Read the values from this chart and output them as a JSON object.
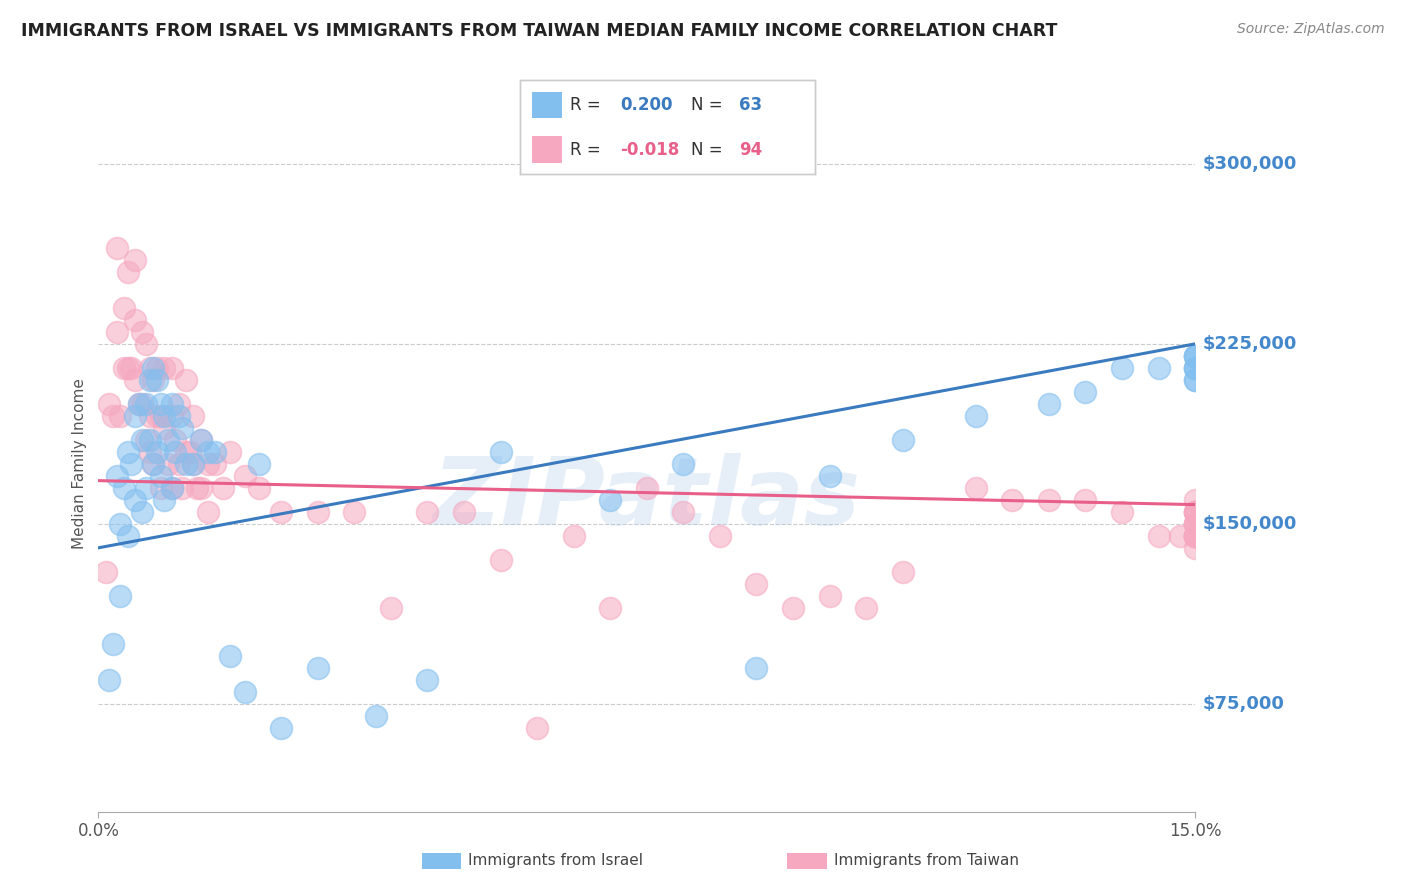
{
  "title": "IMMIGRANTS FROM ISRAEL VS IMMIGRANTS FROM TAIWAN MEDIAN FAMILY INCOME CORRELATION CHART",
  "source": "Source: ZipAtlas.com",
  "ylabel": "Median Family Income",
  "ytick_vals": [
    75000,
    150000,
    225000,
    300000
  ],
  "ytick_labels": [
    "$75,000",
    "$150,000",
    "$225,000",
    "$300,000"
  ],
  "xlim": [
    0.0,
    15.0
  ],
  "ylim": [
    30000,
    320000
  ],
  "israel_R": 0.2,
  "israel_N": 63,
  "taiwan_R": -0.018,
  "taiwan_N": 94,
  "israel_color": "#82bfef",
  "taiwan_color": "#f5a8c0",
  "israel_line_color": "#3a7abf",
  "taiwan_line_color": "#e8608a",
  "grid_color": "#cccccc",
  "watermark": "ZIPatlas",
  "watermark_color": "#a8c8e8",
  "title_color": "#222222",
  "axis_label_color": "#4488cc",
  "legend_border": "#cccccc",
  "israel_x": [
    0.15,
    0.2,
    0.25,
    0.3,
    0.3,
    0.35,
    0.4,
    0.4,
    0.45,
    0.5,
    0.5,
    0.55,
    0.6,
    0.6,
    0.65,
    0.65,
    0.7,
    0.7,
    0.75,
    0.75,
    0.8,
    0.8,
    0.85,
    0.85,
    0.9,
    0.9,
    0.95,
    1.0,
    1.0,
    1.05,
    1.1,
    1.15,
    1.2,
    1.3,
    1.4,
    1.5,
    1.6,
    1.8,
    2.0,
    2.2,
    2.5,
    3.0,
    3.8,
    4.5,
    5.5,
    7.0,
    8.0,
    9.0,
    10.0,
    11.0,
    12.0,
    13.0,
    13.5,
    14.0,
    14.5,
    15.0,
    15.0,
    15.0,
    15.0,
    15.0,
    15.0,
    15.0,
    15.0
  ],
  "israel_y": [
    85000,
    100000,
    170000,
    150000,
    120000,
    165000,
    180000,
    145000,
    175000,
    195000,
    160000,
    200000,
    185000,
    155000,
    200000,
    165000,
    210000,
    185000,
    215000,
    175000,
    210000,
    180000,
    200000,
    170000,
    195000,
    160000,
    185000,
    200000,
    165000,
    180000,
    195000,
    190000,
    175000,
    175000,
    185000,
    180000,
    180000,
    95000,
    80000,
    175000,
    65000,
    90000,
    70000,
    85000,
    180000,
    160000,
    175000,
    90000,
    170000,
    185000,
    195000,
    200000,
    205000,
    215000,
    215000,
    210000,
    215000,
    220000,
    215000,
    215000,
    220000,
    210000,
    220000
  ],
  "taiwan_x": [
    0.1,
    0.15,
    0.2,
    0.25,
    0.25,
    0.3,
    0.35,
    0.35,
    0.4,
    0.4,
    0.45,
    0.5,
    0.5,
    0.5,
    0.55,
    0.6,
    0.6,
    0.65,
    0.65,
    0.7,
    0.7,
    0.7,
    0.75,
    0.75,
    0.8,
    0.8,
    0.85,
    0.85,
    0.9,
    0.9,
    0.95,
    1.0,
    1.0,
    1.0,
    1.05,
    1.1,
    1.1,
    1.15,
    1.2,
    1.2,
    1.25,
    1.3,
    1.3,
    1.35,
    1.4,
    1.4,
    1.5,
    1.5,
    1.6,
    1.7,
    1.8,
    2.0,
    2.2,
    2.5,
    3.0,
    3.5,
    4.0,
    4.5,
    5.0,
    5.5,
    6.0,
    6.5,
    7.0,
    7.5,
    8.0,
    8.5,
    9.0,
    9.5,
    10.0,
    10.5,
    11.0,
    12.0,
    12.5,
    13.0,
    13.5,
    14.0,
    14.5,
    14.8,
    15.0,
    15.0,
    15.0,
    15.0,
    15.0,
    15.0,
    15.0,
    15.0,
    15.0,
    15.0,
    15.0,
    15.0,
    15.0,
    15.0,
    15.0,
    15.0
  ],
  "taiwan_y": [
    130000,
    200000,
    195000,
    230000,
    265000,
    195000,
    240000,
    215000,
    255000,
    215000,
    215000,
    260000,
    235000,
    210000,
    200000,
    230000,
    200000,
    225000,
    185000,
    215000,
    195000,
    180000,
    210000,
    175000,
    215000,
    195000,
    195000,
    165000,
    215000,
    190000,
    175000,
    215000,
    195000,
    165000,
    185000,
    200000,
    175000,
    165000,
    210000,
    180000,
    180000,
    195000,
    175000,
    165000,
    185000,
    165000,
    175000,
    155000,
    175000,
    165000,
    180000,
    170000,
    165000,
    155000,
    155000,
    155000,
    115000,
    155000,
    155000,
    135000,
    65000,
    145000,
    115000,
    165000,
    155000,
    145000,
    125000,
    115000,
    120000,
    115000,
    130000,
    165000,
    160000,
    160000,
    160000,
    155000,
    145000,
    145000,
    155000,
    150000,
    155000,
    160000,
    155000,
    145000,
    145000,
    145000,
    150000,
    145000,
    145000,
    155000,
    150000,
    145000,
    140000,
    150000
  ]
}
